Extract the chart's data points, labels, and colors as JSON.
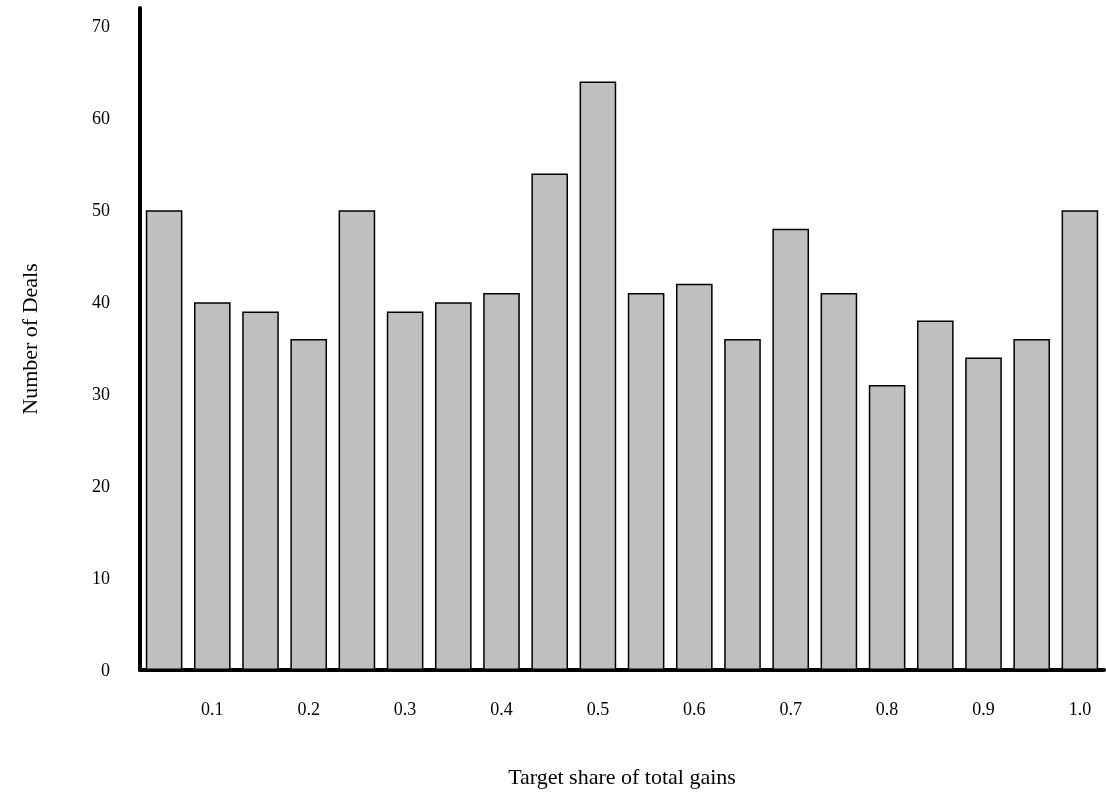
{
  "chart_data": {
    "type": "bar",
    "xlabel": "Target share of total gains",
    "ylabel": "Number of Deals",
    "categories": [
      null,
      "0.1",
      null,
      "0.2",
      null,
      "0.3",
      null,
      "0.4",
      null,
      "0.5",
      null,
      "0.6",
      null,
      "0.7",
      null,
      "0.8",
      null,
      "0.9",
      null,
      "1.0"
    ],
    "values": [
      50,
      40,
      39,
      36,
      50,
      39,
      40,
      41,
      54,
      64,
      41,
      42,
      36,
      48,
      41,
      31,
      38,
      34,
      36,
      50
    ],
    "color": "#bfbfbf",
    "ylim": [
      0,
      72
    ],
    "yticks": [
      0,
      10,
      20,
      30,
      40,
      50,
      60,
      70
    ],
    "grid": false
  }
}
